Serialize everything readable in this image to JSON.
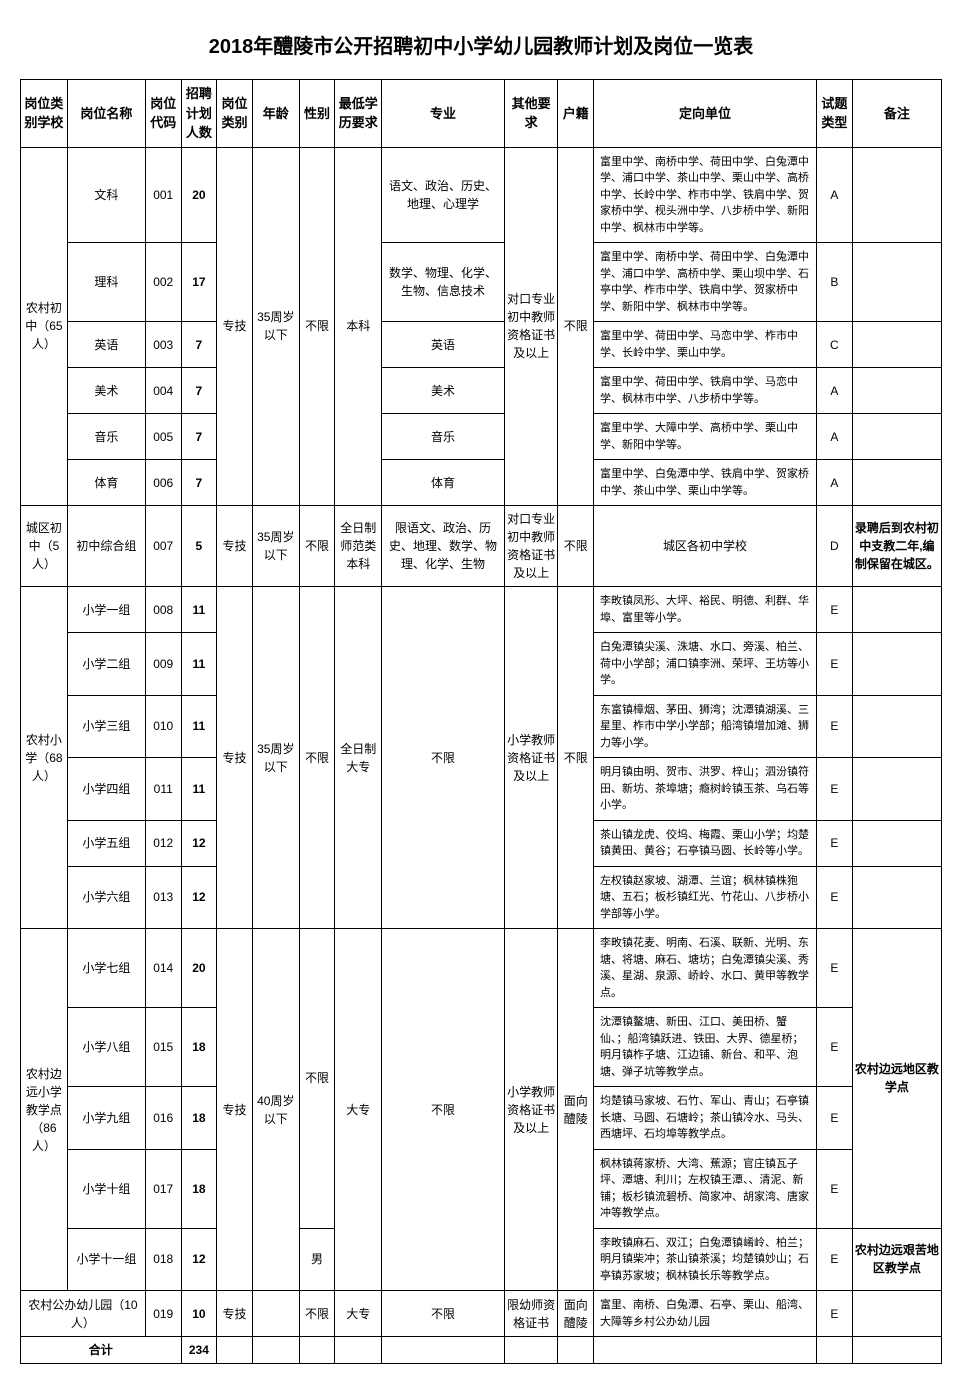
{
  "title": "2018年醴陵市公开招聘初中小学幼儿园教师计划及岗位一览表",
  "headers": {
    "school": "岗位类别学校",
    "name": "岗位名称",
    "code": "岗位代码",
    "count": "招聘计划人数",
    "cat": "岗位类别",
    "age": "年龄",
    "sex": "性别",
    "edu": "最低学历要求",
    "major": "专业",
    "other": "其他要求",
    "huji": "户籍",
    "unit": "定向单位",
    "exam": "试题类型",
    "note": "备注"
  },
  "group1": {
    "school": "农村初中（65人）",
    "cat": "专技",
    "age": "35周岁以下",
    "sex": "不限",
    "edu": "本科",
    "other": "对口专业初中教师资格证书及以上",
    "huji": "不限",
    "rows": [
      {
        "name": "文科",
        "code": "001",
        "count": "20",
        "major": "语文、政治、历史、地理、心理学",
        "unit": "富里中学、南桥中学、荷田中学、白兔潭中学、浦口中学、茶山中学、栗山中学、高桥中学、长岭中学、柞市中学、铁肩中学、贺家桥中学、枧头洲中学、八步桥中学、新阳中学、枫林市中学等。",
        "exam": "A",
        "note": ""
      },
      {
        "name": "理科",
        "code": "002",
        "count": "17",
        "major": "数学、物理、化学、生物、信息技术",
        "unit": "富里中学、南桥中学、荷田中学、白兔潭中学、浦口中学、高桥中学、栗山坝中学、石亭中学、柞市中学、铁肩中学、贺家桥中学、新阳中学、枫林市中学等。",
        "exam": "B",
        "note": ""
      },
      {
        "name": "英语",
        "code": "003",
        "count": "7",
        "major": "英语",
        "unit": "富里中学、荷田中学、马恋中学、柞市中学、长岭中学、栗山中学。",
        "exam": "C",
        "note": ""
      },
      {
        "name": "美术",
        "code": "004",
        "count": "7",
        "major": "美术",
        "unit": "富里中学、荷田中学、铁肩中学、马恋中学、枫林市中学、八步桥中学等。",
        "exam": "A",
        "note": ""
      },
      {
        "name": "音乐",
        "code": "005",
        "count": "7",
        "major": "音乐",
        "unit": "富里中学、大障中学、高桥中学、栗山中学、新阳中学等。",
        "exam": "A",
        "note": ""
      },
      {
        "name": "体育",
        "code": "006",
        "count": "7",
        "major": "体育",
        "unit": "富里中学、白兔潭中学、铁肩中学、贺家桥中学、茶山中学、栗山中学等。",
        "exam": "A",
        "note": ""
      }
    ]
  },
  "group2": {
    "school": "城区初中（5人）",
    "name": "初中综合组",
    "code": "007",
    "count": "5",
    "cat": "专技",
    "age": "35周岁以下",
    "sex": "不限",
    "edu": "全日制师范类本科",
    "major": "限语文、政治、历史、地理、数学、物理、化学、生物",
    "other": "对口专业初中教师资格证书及以上",
    "huji": "不限",
    "unit": "城区各初中学校",
    "exam": "D",
    "note": "录聘后到农村初中支教二年,编制保留在城区。"
  },
  "group3": {
    "school": "农村小学（68人）",
    "cat": "专技",
    "age": "35周岁以下",
    "sex": "不限",
    "edu": "全日制大专",
    "major": "不限",
    "other": "小学教师资格证书及以上",
    "huji": "不限",
    "rows": [
      {
        "name": "小学一组",
        "code": "008",
        "count": "11",
        "unit": "李畋镇凤形、大坪、裕民、明德、利群、华埠、富里等小学。",
        "exam": "E",
        "note": ""
      },
      {
        "name": "小学二组",
        "code": "009",
        "count": "11",
        "unit": "白兔潭镇尖溪、洙塘、水口、旁溪、柏兰、荷中小学部；浦口镇李洲、荣坪、王坊等小学。",
        "exam": "E",
        "note": ""
      },
      {
        "name": "小学三组",
        "code": "010",
        "count": "11",
        "unit": "东富镇樟烟、茅田、狮湾；沈潭镇湖溪、三星里、柞市中学小学部；船湾镇增加滩、狮力等小学。",
        "exam": "E",
        "note": ""
      },
      {
        "name": "小学四组",
        "code": "011",
        "count": "11",
        "unit": "明月镇由明、贺市、洪罗、梓山；泗汾镇符田、新坊、茶埠塘；瘾树岭镇玉茶、乌石等小学。",
        "exam": "E",
        "note": ""
      },
      {
        "name": "小学五组",
        "code": "012",
        "count": "12",
        "unit": "茶山镇龙虎、佼坞、梅霞、栗山小学；均楚镇黄田、黄谷；石亭镇马圆、长岭等小学。",
        "exam": "E",
        "note": ""
      },
      {
        "name": "小学六组",
        "code": "013",
        "count": "12",
        "unit": "左权镇赵家坡、湖潭、兰谊；枫林镇株狍塘、五石；板杉镇红光、竹花山、八步桥小学部等小学。",
        "exam": "E",
        "note": ""
      }
    ]
  },
  "group4": {
    "school": "农村边远小学教学点（86人）",
    "cat": "专技",
    "age": "40周岁以下",
    "sex1": "不限",
    "sex2": "男",
    "edu": "大专",
    "major": "不限",
    "other": "小学教师资格证书及以上",
    "huji": "面向醴陵",
    "note_a": "农村边远地区教学点",
    "note_b": "农村边远艰苦地区教学点",
    "rows": [
      {
        "name": "小学七组",
        "code": "014",
        "count": "20",
        "unit": "李畋镇花麦、明南、石溪、联新、光明、东塘、将塘、麻石、塘坊；白兔潭镇尖溪、秀溪、星湖、泉源、峤岭、水口、黄甲等教学点。",
        "exam": "E"
      },
      {
        "name": "小学八组",
        "code": "015",
        "count": "18",
        "unit": "沈潭镇鳌塘、新田、江口、美田桥、蟹仙、；船湾镇跃进、铁田、大界、德星桥；明月镇柞子塘、江边铺、新台、和平、泡塘、弹子坑等教学点。",
        "exam": "E"
      },
      {
        "name": "小学九组",
        "code": "016",
        "count": "18",
        "unit": "均楚镇马家坡、石竹、军山、青山；石亭镇长塘、马圆、石塘岭；茶山镇冷水、马头、西塘坪、石均埠等教学点。",
        "exam": "E"
      },
      {
        "name": "小学十组",
        "code": "017",
        "count": "18",
        "unit": "枫林镇蒋家桥、大湾、蕉源；官庄镇瓦子坪、潭塘、利川；左权镇王潭、、清泥、新铺；板杉镇流碧桥、简家冲、胡家湾、唐家冲等教学点。",
        "exam": "E"
      },
      {
        "name": "小学十一组",
        "code": "018",
        "count": "12",
        "unit": "李畋镇麻石、双江；白兔潭镇崤岭、柏兰；明月镇柴冲；茶山镇茶溪；均楚镇妙山；石亭镇苏家坡；枫林镇长乐等教学点。",
        "exam": "E"
      }
    ]
  },
  "group5": {
    "school": "农村公办幼儿园（10人）",
    "code": "019",
    "count": "10",
    "cat": "专技",
    "sex": "不限",
    "edu": "大专",
    "major": "不限",
    "other": "限幼师资格证书",
    "huji": "面向醴陵",
    "unit": "富里、南桥、白兔潭、石亭、栗山、船湾、大障等乡村公办幼儿园",
    "exam": "E",
    "note": ""
  },
  "total": {
    "label": "合计",
    "count": "234"
  }
}
